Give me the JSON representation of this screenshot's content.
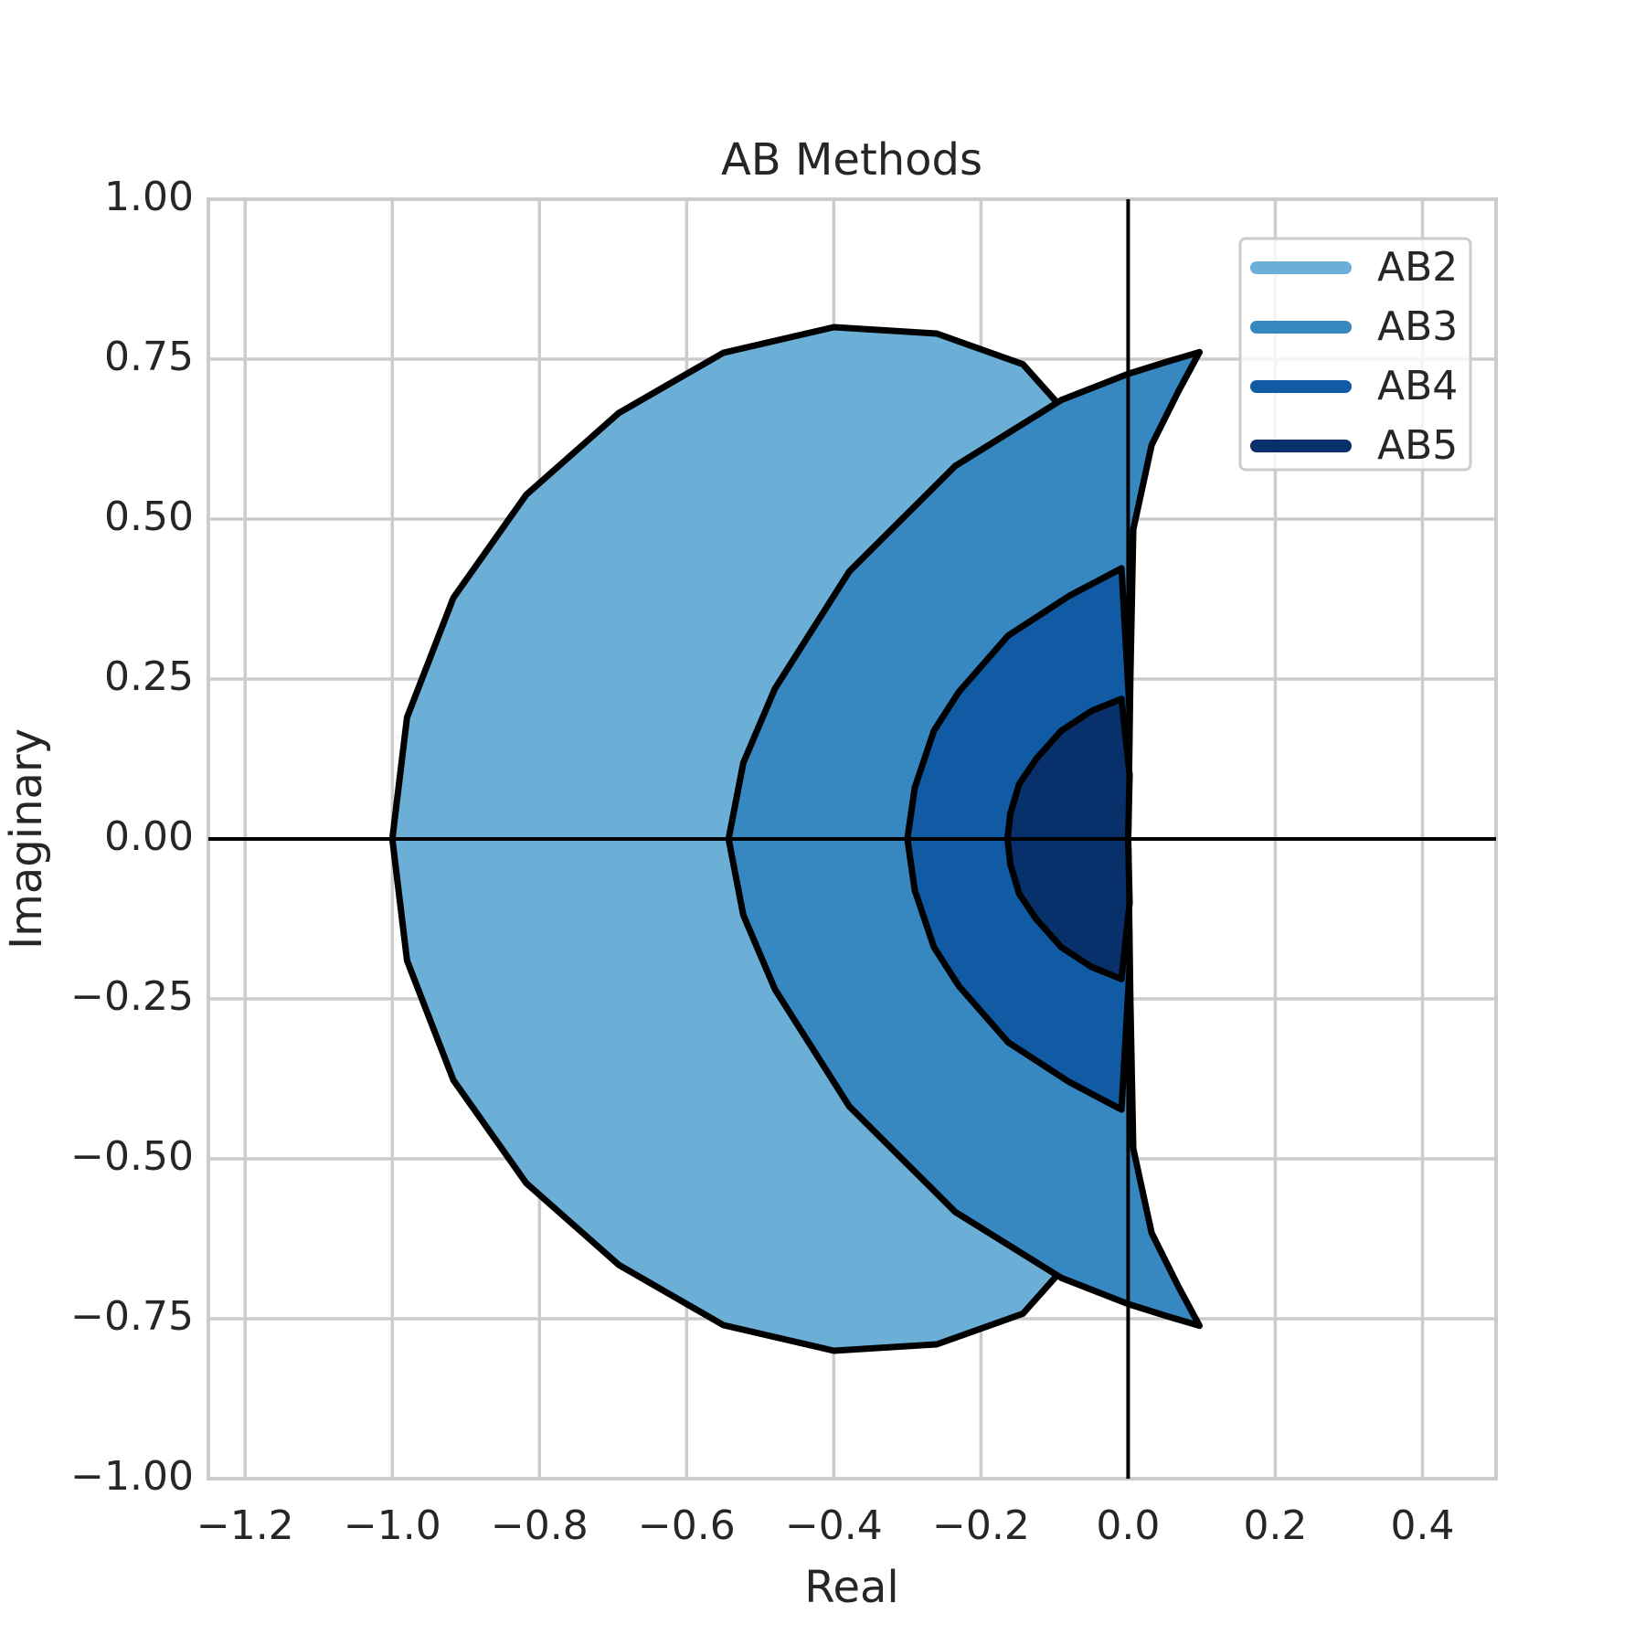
{
  "chart_data": {
    "type": "area",
    "title": "AB Methods",
    "xlabel": "Real",
    "ylabel": "Imaginary",
    "xlim": [
      -1.25,
      0.5
    ],
    "ylim": [
      -1,
      1
    ],
    "xticks": [
      {
        "value": -1.2,
        "label": "−1.2"
      },
      {
        "value": -1.0,
        "label": "−1.0"
      },
      {
        "value": -0.8,
        "label": "−0.8"
      },
      {
        "value": -0.6,
        "label": "−0.6"
      },
      {
        "value": -0.4,
        "label": "−0.4"
      },
      {
        "value": -0.2,
        "label": "−0.2"
      },
      {
        "value": 0,
        "label": "0.0"
      },
      0.2,
      0.4
    ],
    "yticks": [
      {
        "value": -1,
        "label": "−1.00"
      },
      {
        "value": -0.75,
        "label": "−0.75"
      },
      {
        "value": -0.5,
        "label": "−0.50"
      },
      {
        "value": -0.25,
        "label": "−0.25"
      },
      {
        "value": 0,
        "label": "0.00"
      },
      0.25,
      {
        "value": 0.5,
        "label": "0.50"
      },
      0.75,
      {
        "value": 1,
        "label": "1.00"
      }
    ],
    "grid": true,
    "legend": "upper right",
    "edge_color": "#000000",
    "hlines": [
      0
    ],
    "vlines": [
      0
    ],
    "series": [
      {
        "name": "AB2",
        "color": "#6baed6",
        "x": [
          0,
          -0.002,
          -0.015,
          -0.06,
          -0.143,
          -0.26,
          -0.4,
          -0.55,
          -0.692,
          -0.818,
          -0.917,
          -0.98,
          -1,
          -0.98,
          -0.917,
          -0.818,
          -0.692,
          -0.55,
          -0.4,
          -0.26,
          -0.143,
          -0.06,
          -0.015,
          -0.002,
          0
        ],
        "values": [
          0,
          0.24,
          0.472,
          0.635,
          0.742,
          0.79,
          0.8,
          0.76,
          0.666,
          0.538,
          0.377,
          0.19,
          0,
          -0.19,
          -0.377,
          -0.538,
          -0.666,
          -0.76,
          -0.8,
          -0.79,
          -0.742,
          -0.635,
          -0.472,
          -0.24,
          0
        ]
      },
      {
        "name": "AB3",
        "color": "#3787c0",
        "x": [
          0,
          0.003,
          0.007,
          0.032,
          0.068,
          0.097,
          0.05,
          0,
          -0.091,
          -0.235,
          -0.379,
          -0.48,
          -0.523,
          -0.543,
          -0.523,
          -0.48,
          -0.379,
          -0.235,
          -0.091,
          0,
          0.05,
          0.097,
          0.068,
          0.032,
          0.007,
          0.003,
          0
        ],
        "values": [
          0,
          0.25,
          0.484,
          0.616,
          0.699,
          0.761,
          0.745,
          0.727,
          0.686,
          0.583,
          0.418,
          0.235,
          0.119,
          0,
          -0.119,
          -0.235,
          -0.418,
          -0.583,
          -0.686,
          -0.727,
          -0.745,
          -0.761,
          -0.699,
          -0.616,
          -0.484,
          -0.25,
          0
        ]
      },
      {
        "name": "AB4",
        "color": "#105ba4",
        "x": [
          0,
          0.002,
          -0.009,
          -0.08,
          -0.163,
          -0.23,
          -0.264,
          -0.29,
          -0.3,
          -0.29,
          -0.264,
          -0.23,
          -0.163,
          -0.08,
          -0.009,
          0.002,
          0
        ],
        "values": [
          0,
          0.2,
          0.423,
          0.38,
          0.318,
          0.23,
          0.169,
          0.08,
          0,
          -0.08,
          -0.169,
          -0.23,
          -0.318,
          -0.38,
          -0.423,
          -0.2,
          0
        ]
      },
      {
        "name": "AB5",
        "color": "#08306b",
        "x": [
          0,
          0.002,
          -0.009,
          -0.05,
          -0.091,
          -0.125,
          -0.148,
          -0.16,
          -0.164,
          -0.16,
          -0.148,
          -0.125,
          -0.091,
          -0.05,
          -0.009,
          0.002,
          0
        ],
        "values": [
          0,
          0.1,
          0.219,
          0.2,
          0.169,
          0.125,
          0.086,
          0.04,
          0,
          -0.04,
          -0.086,
          -0.125,
          -0.169,
          -0.2,
          -0.219,
          -0.1,
          0
        ]
      }
    ]
  }
}
